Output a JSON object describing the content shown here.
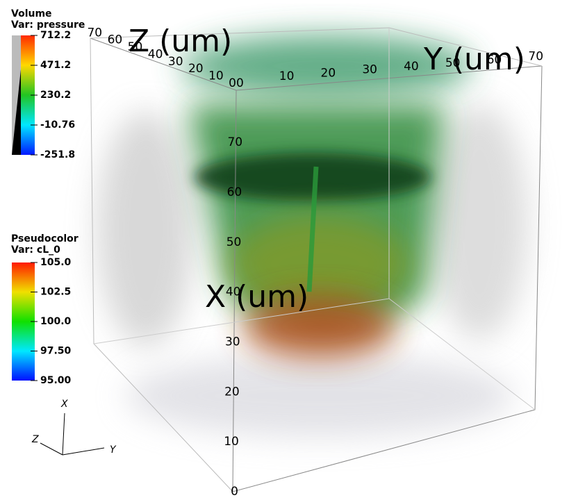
{
  "legends": [
    {
      "title": "Volume",
      "variable": "Var: pressure",
      "ticks": [
        "712.2",
        "471.2",
        "230.2",
        "-10.76",
        "-251.8"
      ]
    },
    {
      "title": "Pseudocolor",
      "variable": "Var: cL_0",
      "ticks": [
        "105.0",
        "102.5",
        "100.0",
        "97.50",
        "95.00"
      ]
    }
  ],
  "axes": {
    "x": {
      "title": "X (um)",
      "ticks": [
        "0",
        "10",
        "20",
        "30",
        "40",
        "50",
        "60",
        "70"
      ]
    },
    "y": {
      "title": "Y (um)",
      "ticks": [
        "10",
        "20",
        "30",
        "40",
        "50",
        "60",
        "70"
      ]
    },
    "z": {
      "title": "Z (um)",
      "ticks": [
        "00",
        "10",
        "20",
        "30",
        "40",
        "50",
        "60",
        "70"
      ]
    }
  },
  "triad": [
    "X",
    "Y",
    "Z"
  ]
}
